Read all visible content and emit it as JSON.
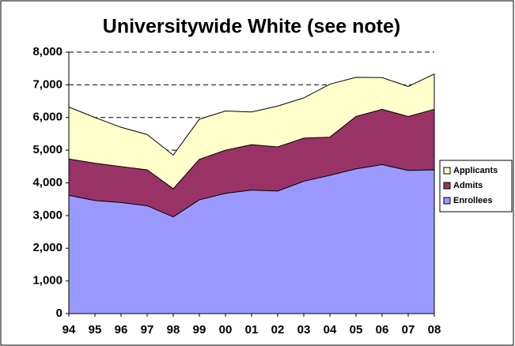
{
  "chart_data": {
    "type": "area",
    "title": "Universitywide White (see note)",
    "categories": [
      "94",
      "95",
      "96",
      "97",
      "98",
      "99",
      "00",
      "01",
      "02",
      "03",
      "04",
      "05",
      "06",
      "07",
      "08"
    ],
    "series": [
      {
        "name": "Applicants",
        "color": "#ffffcc",
        "values": [
          6320,
          6000,
          5700,
          5480,
          4850,
          5950,
          6200,
          6170,
          6350,
          6600,
          7020,
          7230,
          7220,
          6950,
          7330
        ]
      },
      {
        "name": "Admits",
        "color": "#993366",
        "values": [
          4730,
          4600,
          4500,
          4400,
          3820,
          4720,
          5000,
          5170,
          5100,
          5370,
          5400,
          6030,
          6250,
          6030,
          6250
        ]
      },
      {
        "name": "Enrollees",
        "color": "#9999ff",
        "values": [
          3620,
          3460,
          3400,
          3300,
          2960,
          3480,
          3680,
          3780,
          3750,
          4050,
          4230,
          4430,
          4560,
          4380,
          4400
        ]
      }
    ],
    "ylim": [
      0,
      8000
    ],
    "yticks": [
      0,
      {
        "value": 1000,
        "label": "1,000"
      },
      {
        "value": 2000,
        "label": "2,000"
      },
      {
        "value": 3000,
        "label": "3,000"
      },
      {
        "value": 4000,
        "label": "4,000"
      },
      {
        "value": 5000,
        "label": "5,000"
      },
      {
        "value": 6000,
        "label": "6,000"
      },
      {
        "value": 7000,
        "label": "7,000"
      },
      {
        "value": 8000,
        "label": "8,000"
      }
    ],
    "grid": true,
    "legend": "right"
  }
}
